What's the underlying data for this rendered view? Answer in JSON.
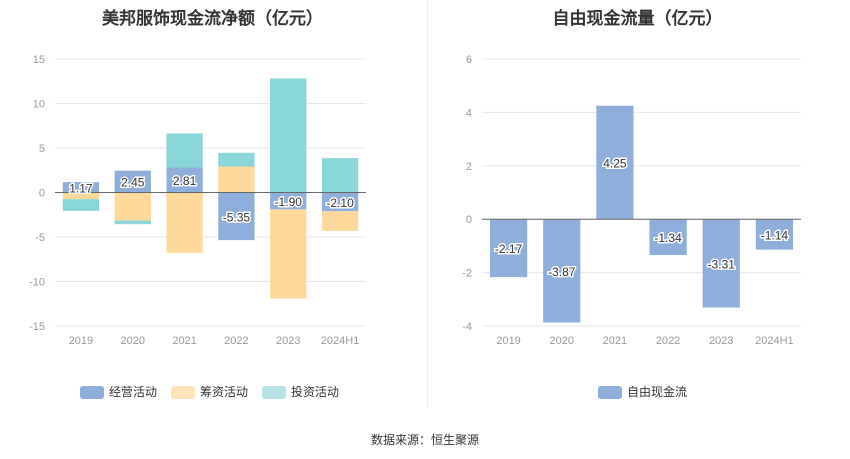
{
  "source": "数据来源：恒生聚源",
  "colors": {
    "operating": "#8eaedc",
    "financing": "#fed999",
    "investing": "#88d6d9",
    "fcf": "#8eaedc"
  },
  "chart_data": [
    {
      "type": "bar",
      "stacked": true,
      "title": "美邦服饰现金流净额（亿元）",
      "categories": [
        "2019",
        "2020",
        "2021",
        "2022",
        "2023",
        "2024H1"
      ],
      "ylim": [
        -15,
        15
      ],
      "yticks": [
        15,
        10,
        5,
        0,
        -5,
        -10,
        -15
      ],
      "grid": true,
      "legend": "bottom",
      "series": [
        {
          "name": "经营活动",
          "values": [
            1.17,
            2.45,
            2.81,
            -5.35,
            -1.9,
            -2.1
          ],
          "labels": [
            "1.17",
            "2.45",
            "2.81",
            "-5.35",
            "-1.90",
            "-2.10"
          ]
        },
        {
          "name": "筹资活动",
          "values": [
            -0.75,
            -3.15,
            -6.78,
            2.92,
            -10.01,
            -2.21
          ]
        },
        {
          "name": "投资活动",
          "values": [
            -1.31,
            -0.41,
            3.82,
            1.54,
            12.81,
            3.86
          ]
        }
      ]
    },
    {
      "type": "bar",
      "title": "自由现金流量（亿元）",
      "categories": [
        "2019",
        "2020",
        "2021",
        "2022",
        "2023",
        "2024H1"
      ],
      "ylim": [
        -4,
        6
      ],
      "yticks": [
        6,
        4,
        2,
        0,
        -2,
        -4
      ],
      "grid": true,
      "legend": "bottom",
      "series": [
        {
          "name": "自由现金流",
          "values": [
            -2.17,
            -3.87,
            4.25,
            -1.34,
            -3.31,
            -1.14
          ],
          "labels": [
            "-2.17",
            "-3.87",
            "4.25",
            "-1.34",
            "-3.31",
            "-1.14"
          ]
        }
      ]
    }
  ]
}
